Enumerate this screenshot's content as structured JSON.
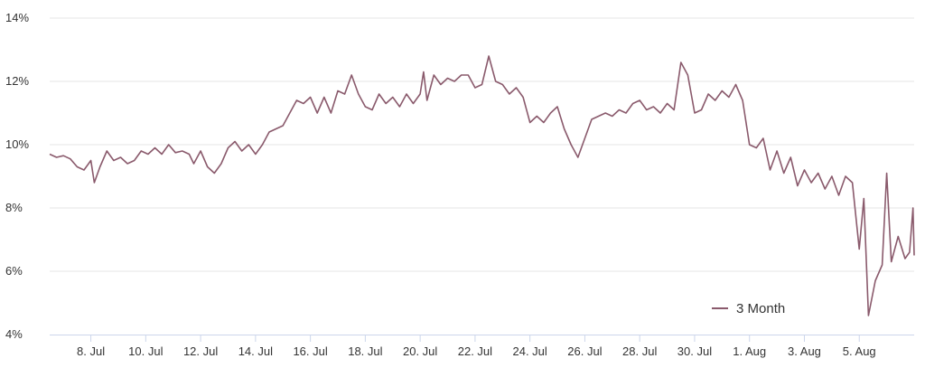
{
  "chart_data": {
    "type": "line",
    "title": "",
    "xlabel": "",
    "ylabel": "",
    "y_unit": "%",
    "ylim": [
      4,
      14
    ],
    "y_ticks": [
      4,
      6,
      8,
      10,
      12,
      14
    ],
    "y_tick_labels": [
      "4%",
      "6%",
      "8%",
      "10%",
      "12%",
      "14%"
    ],
    "x_range": [
      "07-06 12:00",
      "08-07 00:00"
    ],
    "x_ticks": [
      "07-08",
      "07-10",
      "07-12",
      "07-14",
      "07-16",
      "07-18",
      "07-20",
      "07-22",
      "07-24",
      "07-26",
      "07-28",
      "07-30",
      "08-01",
      "08-03",
      "08-05"
    ],
    "x_tick_labels": [
      "8. Jul",
      "10. Jul",
      "12. Jul",
      "14. Jul",
      "16. Jul",
      "18. Jul",
      "20. Jul",
      "22. Jul",
      "24. Jul",
      "26. Jul",
      "28. Jul",
      "30. Jul",
      "1. Aug",
      "3. Aug",
      "5. Aug"
    ],
    "grid": {
      "horizontal": true,
      "vertical": false
    },
    "legend_position": "bottom-right",
    "series": [
      {
        "name": "3 Month",
        "color": "#8a5a6c",
        "points": [
          [
            "07-06 12:00",
            9.7
          ],
          [
            "07-06 18:00",
            9.6
          ],
          [
            "07-07 00:00",
            9.65
          ],
          [
            "07-07 06:00",
            9.55
          ],
          [
            "07-07 12:00",
            9.3
          ],
          [
            "07-07 18:00",
            9.2
          ],
          [
            "07-08 00:00",
            9.5
          ],
          [
            "07-08 03:00",
            8.8
          ],
          [
            "07-08 08:00",
            9.3
          ],
          [
            "07-08 14:00",
            9.8
          ],
          [
            "07-08 20:00",
            9.5
          ],
          [
            "07-09 02:00",
            9.6
          ],
          [
            "07-09 08:00",
            9.4
          ],
          [
            "07-09 14:00",
            9.5
          ],
          [
            "07-09 20:00",
            9.8
          ],
          [
            "07-10 02:00",
            9.7
          ],
          [
            "07-10 08:00",
            9.9
          ],
          [
            "07-10 14:00",
            9.7
          ],
          [
            "07-10 20:00",
            10.0
          ],
          [
            "07-11 02:00",
            9.75
          ],
          [
            "07-11 08:00",
            9.8
          ],
          [
            "07-11 14:00",
            9.7
          ],
          [
            "07-11 18:00",
            9.4
          ],
          [
            "07-12 00:00",
            9.8
          ],
          [
            "07-12 06:00",
            9.3
          ],
          [
            "07-12 12:00",
            9.1
          ],
          [
            "07-12 18:00",
            9.4
          ],
          [
            "07-13 00:00",
            9.9
          ],
          [
            "07-13 06:00",
            10.1
          ],
          [
            "07-13 12:00",
            9.8
          ],
          [
            "07-13 18:00",
            10.0
          ],
          [
            "07-14 00:00",
            9.7
          ],
          [
            "07-14 06:00",
            10.0
          ],
          [
            "07-14 12:00",
            10.4
          ],
          [
            "07-14 18:00",
            10.5
          ],
          [
            "07-15 00:00",
            10.6
          ],
          [
            "07-15 06:00",
            11.0
          ],
          [
            "07-15 12:00",
            11.4
          ],
          [
            "07-15 18:00",
            11.3
          ],
          [
            "07-16 00:00",
            11.5
          ],
          [
            "07-16 06:00",
            11.0
          ],
          [
            "07-16 12:00",
            11.5
          ],
          [
            "07-16 18:00",
            11.0
          ],
          [
            "07-17 00:00",
            11.7
          ],
          [
            "07-17 06:00",
            11.6
          ],
          [
            "07-17 12:00",
            12.2
          ],
          [
            "07-17 18:00",
            11.6
          ],
          [
            "07-18 00:00",
            11.2
          ],
          [
            "07-18 06:00",
            11.1
          ],
          [
            "07-18 12:00",
            11.6
          ],
          [
            "07-18 18:00",
            11.3
          ],
          [
            "07-19 00:00",
            11.5
          ],
          [
            "07-19 06:00",
            11.2
          ],
          [
            "07-19 12:00",
            11.6
          ],
          [
            "07-19 18:00",
            11.3
          ],
          [
            "07-20 00:00",
            11.6
          ],
          [
            "07-20 03:00",
            12.3
          ],
          [
            "07-20 06:00",
            11.4
          ],
          [
            "07-20 12:00",
            12.2
          ],
          [
            "07-20 18:00",
            11.9
          ],
          [
            "07-21 00:00",
            12.1
          ],
          [
            "07-21 06:00",
            12.0
          ],
          [
            "07-21 12:00",
            12.2
          ],
          [
            "07-21 18:00",
            12.2
          ],
          [
            "07-22 00:00",
            11.8
          ],
          [
            "07-22 06:00",
            11.9
          ],
          [
            "07-22 12:00",
            12.8
          ],
          [
            "07-22 18:00",
            12.0
          ],
          [
            "07-23 00:00",
            11.9
          ],
          [
            "07-23 06:00",
            11.6
          ],
          [
            "07-23 12:00",
            11.8
          ],
          [
            "07-23 18:00",
            11.5
          ],
          [
            "07-24 00:00",
            10.7
          ],
          [
            "07-24 06:00",
            10.9
          ],
          [
            "07-24 12:00",
            10.7
          ],
          [
            "07-24 18:00",
            11.0
          ],
          [
            "07-25 00:00",
            11.2
          ],
          [
            "07-25 06:00",
            10.5
          ],
          [
            "07-25 12:00",
            10.0
          ],
          [
            "07-25 18:00",
            9.6
          ],
          [
            "07-26 00:00",
            10.2
          ],
          [
            "07-26 06:00",
            10.8
          ],
          [
            "07-26 12:00",
            10.9
          ],
          [
            "07-26 18:00",
            11.0
          ],
          [
            "07-27 00:00",
            10.9
          ],
          [
            "07-27 06:00",
            11.1
          ],
          [
            "07-27 12:00",
            11.0
          ],
          [
            "07-27 18:00",
            11.3
          ],
          [
            "07-28 00:00",
            11.4
          ],
          [
            "07-28 06:00",
            11.1
          ],
          [
            "07-28 12:00",
            11.2
          ],
          [
            "07-28 18:00",
            11.0
          ],
          [
            "07-29 00:00",
            11.3
          ],
          [
            "07-29 06:00",
            11.1
          ],
          [
            "07-29 12:00",
            12.6
          ],
          [
            "07-29 18:00",
            12.2
          ],
          [
            "07-30 00:00",
            11.0
          ],
          [
            "07-30 06:00",
            11.1
          ],
          [
            "07-30 12:00",
            11.6
          ],
          [
            "07-30 18:00",
            11.4
          ],
          [
            "07-31 00:00",
            11.7
          ],
          [
            "07-31 06:00",
            11.5
          ],
          [
            "07-31 12:00",
            11.9
          ],
          [
            "07-31 18:00",
            11.4
          ],
          [
            "08-01 00:00",
            10.0
          ],
          [
            "08-01 06:00",
            9.9
          ],
          [
            "08-01 12:00",
            10.2
          ],
          [
            "08-01 18:00",
            9.2
          ],
          [
            "08-02 00:00",
            9.8
          ],
          [
            "08-02 06:00",
            9.1
          ],
          [
            "08-02 12:00",
            9.6
          ],
          [
            "08-02 18:00",
            8.7
          ],
          [
            "08-03 00:00",
            9.2
          ],
          [
            "08-03 06:00",
            8.8
          ],
          [
            "08-03 12:00",
            9.1
          ],
          [
            "08-03 18:00",
            8.6
          ],
          [
            "08-04 00:00",
            9.0
          ],
          [
            "08-04 06:00",
            8.4
          ],
          [
            "08-04 12:00",
            9.0
          ],
          [
            "08-04 18:00",
            8.8
          ],
          [
            "08-05 00:00",
            6.7
          ],
          [
            "08-05 04:00",
            8.3
          ],
          [
            "08-05 08:00",
            4.6
          ],
          [
            "08-05 14:00",
            5.7
          ],
          [
            "08-05 20:00",
            6.2
          ],
          [
            "08-06 00:00",
            9.1
          ],
          [
            "08-06 04:00",
            6.3
          ],
          [
            "08-06 10:00",
            7.1
          ],
          [
            "08-06 16:00",
            6.4
          ],
          [
            "08-06 20:00",
            6.6
          ],
          [
            "08-06 23:00",
            8.0
          ],
          [
            "08-07 00:00",
            6.5
          ]
        ]
      }
    ]
  }
}
